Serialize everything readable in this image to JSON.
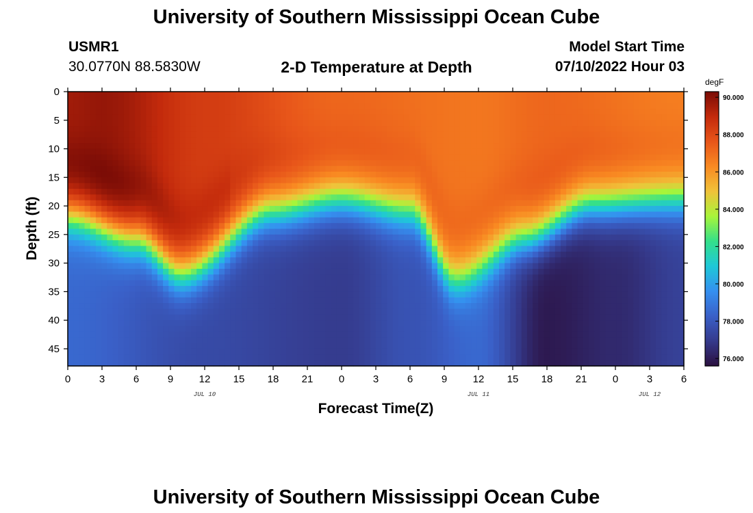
{
  "header": {
    "title": "University of Southern Mississippi Ocean Cube",
    "station": "USMR1",
    "coords": "30.0770N  88.5830W",
    "model_start_label": "Model Start Time",
    "model_start_value": "07/10/2022 Hour 03"
  },
  "footer": {
    "title": "University of Southern Mississippi Ocean Cube"
  },
  "colors": {
    "colormap": [
      "#2b1040",
      "#353a8c",
      "#3a60c8",
      "#3590f0",
      "#1fc8d8",
      "#34e08a",
      "#a8f53a",
      "#f0c23a",
      "#f98a22",
      "#e8561a",
      "#c32a0c",
      "#7a0c06"
    ]
  },
  "chart_data": {
    "type": "heatmap",
    "title": "2-D Temperature at Depth",
    "xlabel": "Forecast Time(Z)",
    "ylabel": "Depth (ft)",
    "x_range": [
      0,
      54
    ],
    "y_range": [
      0,
      48
    ],
    "x_ticks": [
      0,
      3,
      6,
      9,
      12,
      15,
      18,
      21,
      24,
      27,
      30,
      33,
      36,
      39,
      42,
      45,
      48,
      51,
      54
    ],
    "x_tick_labels": [
      "0",
      "3",
      "6",
      "9",
      "12",
      "15",
      "18",
      "21",
      "0",
      "3",
      "6",
      "9",
      "12",
      "15",
      "18",
      "21",
      "0",
      "3",
      "6"
    ],
    "y_ticks": [
      0,
      5,
      10,
      15,
      20,
      25,
      30,
      35,
      40,
      45
    ],
    "y_tick_labels": [
      "0",
      "5",
      "10",
      "15",
      "20",
      "25",
      "30",
      "35",
      "40",
      "45"
    ],
    "date_labels": [
      {
        "text": "JUL 10",
        "x": 12
      },
      {
        "text": "JUL 11",
        "x": 36
      },
      {
        "text": "JUL 12",
        "x": 51
      }
    ],
    "colorbar": {
      "unit": "degF",
      "min": 75.6,
      "max": 90.3,
      "ticks": [
        90,
        88,
        86,
        84,
        82,
        80,
        78,
        76
      ],
      "tick_labels": [
        "90.000",
        "88.000",
        "86.000",
        "84.000",
        "82.000",
        "80.000",
        "78.000",
        "76.000"
      ]
    },
    "thermocline_depth_profile": {
      "hours": [
        0,
        6,
        10,
        18,
        24,
        30,
        34,
        40,
        46,
        54
      ],
      "depth_ft": [
        22,
        26,
        32,
        21,
        19,
        21,
        33,
        26,
        20,
        19
      ]
    },
    "surface_temp_profile": {
      "hours": [
        0,
        3,
        12,
        24,
        36,
        42,
        54
      ],
      "temp_f": [
        89.6,
        89.8,
        88.4,
        87.2,
        86.8,
        87.2,
        86.6
      ]
    },
    "bottom_temp_profile": {
      "hours": [
        0,
        12,
        24,
        30,
        36,
        42,
        48,
        54
      ],
      "temp_f": [
        78.5,
        77.5,
        77.0,
        77.8,
        78.5,
        75.9,
        76.4,
        77.2
      ]
    }
  }
}
